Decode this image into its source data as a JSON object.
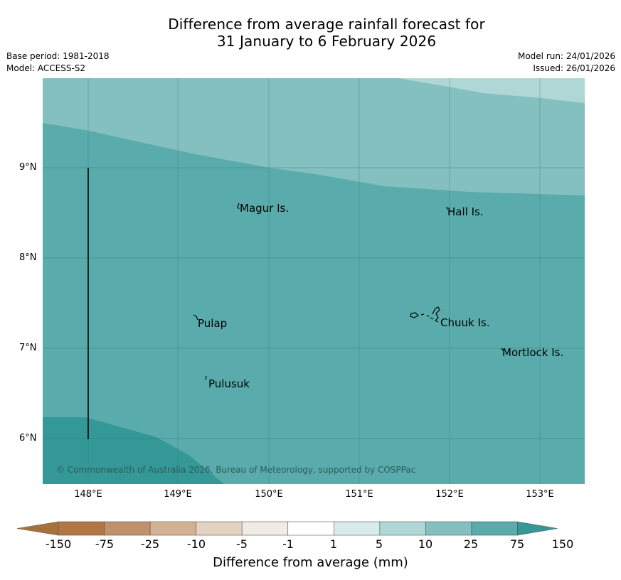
{
  "title": {
    "line1": "Difference from average rainfall forecast for",
    "line2": "31 January to 6 February 2026"
  },
  "meta_left": {
    "base_period": "Base period: 1981-2018",
    "model": "Model: ACCESS-S2"
  },
  "meta_right": {
    "model_run": "Model run: 24/01/2026",
    "issued": "Issued: 26/01/2026"
  },
  "map": {
    "lat_labels": [
      "9°N",
      "8°N",
      "7°N",
      "6°N"
    ],
    "lon_labels": [
      "148°E",
      "149°E",
      "150°E",
      "151°E",
      "152°E",
      "153°E"
    ],
    "places": {
      "magur": "Magur Is.",
      "hall": "Hall Is.",
      "pulap": "Pulap",
      "chuuk": "Chuuk Is.",
      "mortlock": "Mortlock Is.",
      "pulusuk": "Pulusuk"
    },
    "copyright": "© Commonwealth of Australia 2026, Bureau of Meteorology, supported by COSPPac"
  },
  "colorbar": {
    "labels": [
      "-150",
      "-75",
      "-25",
      "-10",
      "-5",
      "-1",
      "1",
      "5",
      "10",
      "25",
      "75",
      "150"
    ],
    "colors": [
      "#a8703a",
      "#b17641",
      "#c0916a",
      "#d3b293",
      "#e5d1c0",
      "#efece6",
      "#ffffff",
      "#d7ecea",
      "#aed7d6",
      "#84c0bf",
      "#5aabab",
      "#339896"
    ],
    "title": "Difference from average (mm)"
  }
}
